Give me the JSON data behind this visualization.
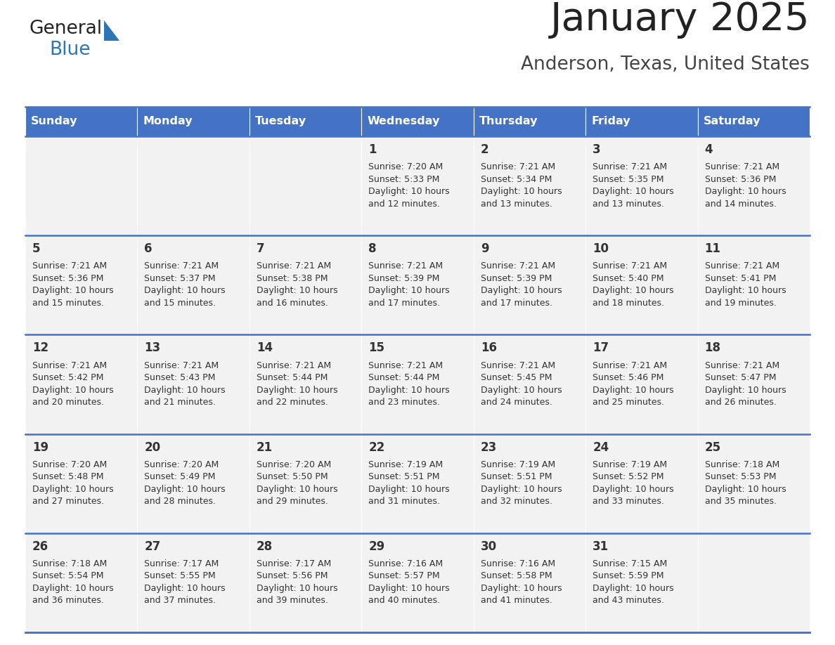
{
  "title": "January 2025",
  "subtitle": "Anderson, Texas, United States",
  "header_bg": "#4472C4",
  "header_text_color": "#FFFFFF",
  "cell_bg": "#F2F2F2",
  "border_color": "#4472C4",
  "day_names": [
    "Sunday",
    "Monday",
    "Tuesday",
    "Wednesday",
    "Thursday",
    "Friday",
    "Saturday"
  ],
  "title_color": "#222222",
  "subtitle_color": "#444444",
  "text_color": "#333333",
  "logo_general_color": "#222222",
  "logo_blue_color": "#2E75B6",
  "logo_triangle_color": "#2E75B6",
  "weeks": [
    [
      {
        "day": null,
        "sunrise": null,
        "sunset": null,
        "daylight": null
      },
      {
        "day": null,
        "sunrise": null,
        "sunset": null,
        "daylight": null
      },
      {
        "day": null,
        "sunrise": null,
        "sunset": null,
        "daylight": null
      },
      {
        "day": 1,
        "sunrise": "7:20 AM",
        "sunset": "5:33 PM",
        "daylight": "10 hours and 12 minutes."
      },
      {
        "day": 2,
        "sunrise": "7:21 AM",
        "sunset": "5:34 PM",
        "daylight": "10 hours and 13 minutes."
      },
      {
        "day": 3,
        "sunrise": "7:21 AM",
        "sunset": "5:35 PM",
        "daylight": "10 hours and 13 minutes."
      },
      {
        "day": 4,
        "sunrise": "7:21 AM",
        "sunset": "5:36 PM",
        "daylight": "10 hours and 14 minutes."
      }
    ],
    [
      {
        "day": 5,
        "sunrise": "7:21 AM",
        "sunset": "5:36 PM",
        "daylight": "10 hours and 15 minutes."
      },
      {
        "day": 6,
        "sunrise": "7:21 AM",
        "sunset": "5:37 PM",
        "daylight": "10 hours and 15 minutes."
      },
      {
        "day": 7,
        "sunrise": "7:21 AM",
        "sunset": "5:38 PM",
        "daylight": "10 hours and 16 minutes."
      },
      {
        "day": 8,
        "sunrise": "7:21 AM",
        "sunset": "5:39 PM",
        "daylight": "10 hours and 17 minutes."
      },
      {
        "day": 9,
        "sunrise": "7:21 AM",
        "sunset": "5:39 PM",
        "daylight": "10 hours and 17 minutes."
      },
      {
        "day": 10,
        "sunrise": "7:21 AM",
        "sunset": "5:40 PM",
        "daylight": "10 hours and 18 minutes."
      },
      {
        "day": 11,
        "sunrise": "7:21 AM",
        "sunset": "5:41 PM",
        "daylight": "10 hours and 19 minutes."
      }
    ],
    [
      {
        "day": 12,
        "sunrise": "7:21 AM",
        "sunset": "5:42 PM",
        "daylight": "10 hours and 20 minutes."
      },
      {
        "day": 13,
        "sunrise": "7:21 AM",
        "sunset": "5:43 PM",
        "daylight": "10 hours and 21 minutes."
      },
      {
        "day": 14,
        "sunrise": "7:21 AM",
        "sunset": "5:44 PM",
        "daylight": "10 hours and 22 minutes."
      },
      {
        "day": 15,
        "sunrise": "7:21 AM",
        "sunset": "5:44 PM",
        "daylight": "10 hours and 23 minutes."
      },
      {
        "day": 16,
        "sunrise": "7:21 AM",
        "sunset": "5:45 PM",
        "daylight": "10 hours and 24 minutes."
      },
      {
        "day": 17,
        "sunrise": "7:21 AM",
        "sunset": "5:46 PM",
        "daylight": "10 hours and 25 minutes."
      },
      {
        "day": 18,
        "sunrise": "7:21 AM",
        "sunset": "5:47 PM",
        "daylight": "10 hours and 26 minutes."
      }
    ],
    [
      {
        "day": 19,
        "sunrise": "7:20 AM",
        "sunset": "5:48 PM",
        "daylight": "10 hours and 27 minutes."
      },
      {
        "day": 20,
        "sunrise": "7:20 AM",
        "sunset": "5:49 PM",
        "daylight": "10 hours and 28 minutes."
      },
      {
        "day": 21,
        "sunrise": "7:20 AM",
        "sunset": "5:50 PM",
        "daylight": "10 hours and 29 minutes."
      },
      {
        "day": 22,
        "sunrise": "7:19 AM",
        "sunset": "5:51 PM",
        "daylight": "10 hours and 31 minutes."
      },
      {
        "day": 23,
        "sunrise": "7:19 AM",
        "sunset": "5:51 PM",
        "daylight": "10 hours and 32 minutes."
      },
      {
        "day": 24,
        "sunrise": "7:19 AM",
        "sunset": "5:52 PM",
        "daylight": "10 hours and 33 minutes."
      },
      {
        "day": 25,
        "sunrise": "7:18 AM",
        "sunset": "5:53 PM",
        "daylight": "10 hours and 35 minutes."
      }
    ],
    [
      {
        "day": 26,
        "sunrise": "7:18 AM",
        "sunset": "5:54 PM",
        "daylight": "10 hours and 36 minutes."
      },
      {
        "day": 27,
        "sunrise": "7:17 AM",
        "sunset": "5:55 PM",
        "daylight": "10 hours and 37 minutes."
      },
      {
        "day": 28,
        "sunrise": "7:17 AM",
        "sunset": "5:56 PM",
        "daylight": "10 hours and 39 minutes."
      },
      {
        "day": 29,
        "sunrise": "7:16 AM",
        "sunset": "5:57 PM",
        "daylight": "10 hours and 40 minutes."
      },
      {
        "day": 30,
        "sunrise": "7:16 AM",
        "sunset": "5:58 PM",
        "daylight": "10 hours and 41 minutes."
      },
      {
        "day": 31,
        "sunrise": "7:15 AM",
        "sunset": "5:59 PM",
        "daylight": "10 hours and 43 minutes."
      },
      {
        "day": null,
        "sunrise": null,
        "sunset": null,
        "daylight": null
      }
    ]
  ],
  "figsize": [
    11.88,
    9.18
  ],
  "dpi": 100
}
